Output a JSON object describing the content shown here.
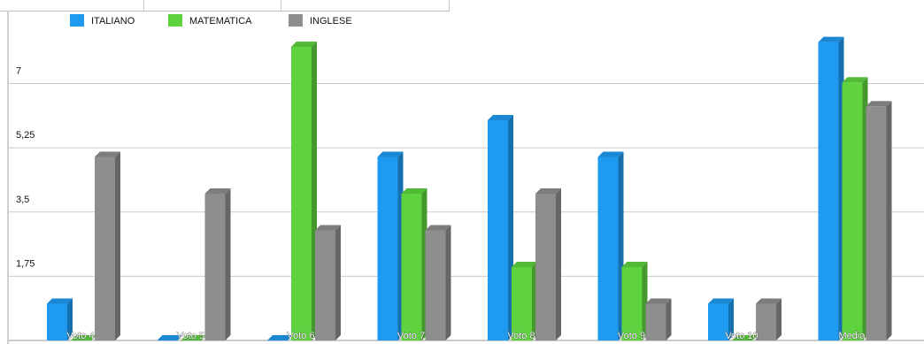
{
  "chart_data": {
    "type": "bar",
    "categories": [
      "Voto 4",
      "Voto 5",
      "Voto 6",
      "Voto 7",
      "Voto 8",
      "Voto 9",
      "Voto 10",
      "Media"
    ],
    "series": [
      {
        "name": "ITALIANO",
        "color": "#1e9bf0",
        "values": [
          1,
          0,
          0,
          5,
          6,
          5,
          1,
          8.13
        ]
      },
      {
        "name": "MATEMATICA",
        "color": "#5ed33f",
        "values": [
          0,
          0,
          8,
          4,
          2,
          2,
          0,
          7.03
        ]
      },
      {
        "name": "INGLESE",
        "color": "#8e8e8e",
        "values": [
          5,
          4,
          3,
          3,
          4,
          1,
          1,
          6.38
        ]
      }
    ],
    "y_ticks": [
      "1,75",
      "3,5",
      "5,25",
      "7"
    ],
    "y_tick_values": [
      1.75,
      3.5,
      5.25,
      7
    ],
    "ylim": [
      0,
      8.5
    ],
    "grid": true,
    "legend_position": "top-left",
    "title": "",
    "xlabel": "",
    "ylabel": ""
  }
}
